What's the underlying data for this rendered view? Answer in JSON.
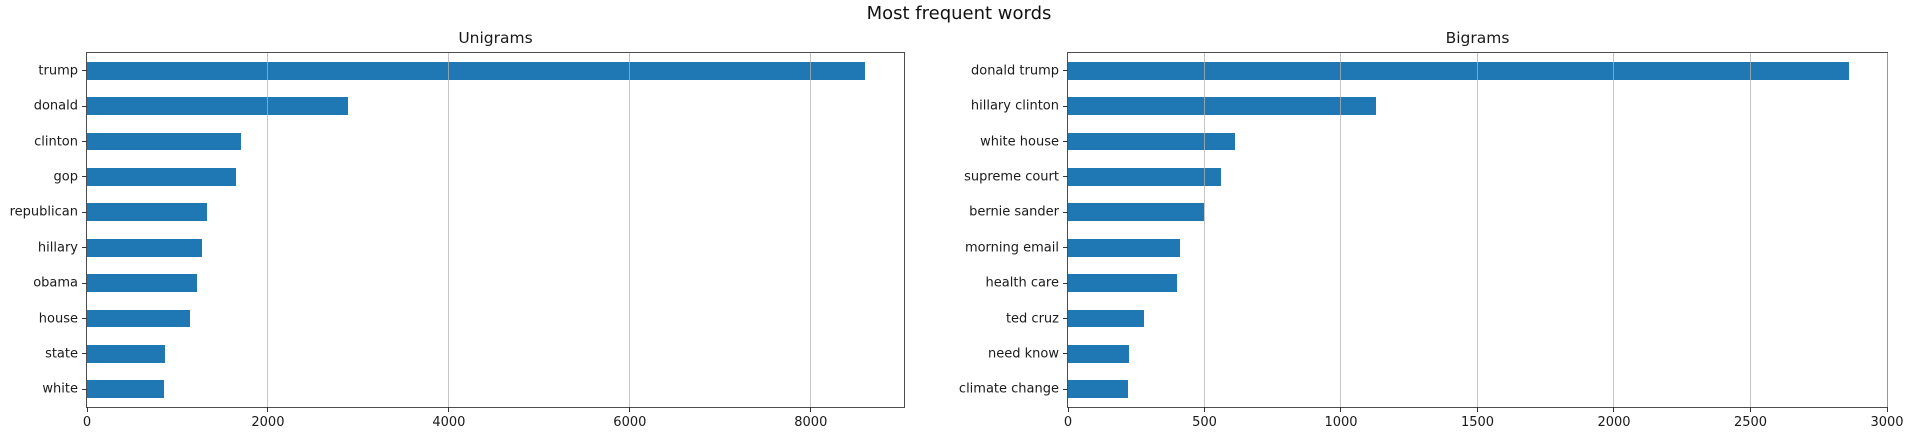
{
  "suptitle": "Most frequent words",
  "colors": {
    "bar": "#1f77b4",
    "grid": "#b2b2b2",
    "spine": "#4d4d4d",
    "text": "#1a1a1a"
  },
  "chart_data": [
    {
      "type": "bar",
      "orientation": "horizontal",
      "title": "Unigrams",
      "categories": [
        "trump",
        "donald",
        "clinton",
        "gop",
        "republican",
        "hillary",
        "obama",
        "house",
        "state",
        "white"
      ],
      "values": [
        8600,
        2880,
        1700,
        1650,
        1330,
        1270,
        1220,
        1140,
        860,
        850
      ],
      "xticks": [
        0,
        2000,
        4000,
        6000,
        8000
      ],
      "xlim": [
        0,
        9030
      ],
      "xlabel": "",
      "ylabel": "",
      "grid": "vertical-only",
      "legend": "none"
    },
    {
      "type": "bar",
      "orientation": "horizontal",
      "title": "Bigrams",
      "categories": [
        "donald trump",
        "hillary clinton",
        "white house",
        "supreme court",
        "bernie sander",
        "morning email",
        "health care",
        "ted cruz",
        "need know",
        "climate change"
      ],
      "values": [
        2860,
        1130,
        610,
        560,
        500,
        410,
        400,
        280,
        225,
        220
      ],
      "xticks": [
        0,
        500,
        1000,
        1500,
        2000,
        2500,
        3000
      ],
      "xlim": [
        0,
        3000
      ],
      "xlabel": "",
      "ylabel": "",
      "grid": "vertical-only",
      "legend": "none"
    }
  ]
}
